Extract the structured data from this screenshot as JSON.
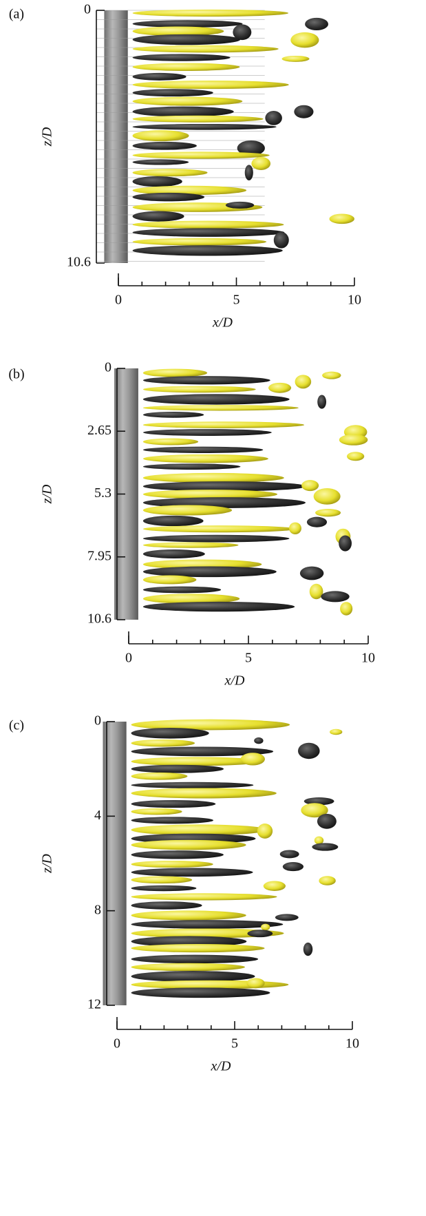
{
  "chart_data": [
    {
      "type": "isosurface",
      "panel": "(a)",
      "xlabel": "x/D",
      "ylabel": "z/D",
      "xlim": [
        0,
        10
      ],
      "xticks": [
        0,
        5,
        10
      ],
      "xminorticks": [
        1,
        2,
        3,
        4,
        6,
        7,
        8,
        9
      ],
      "ylim": [
        0,
        10.6
      ],
      "yticks": [
        0,
        10.6
      ],
      "y_inverted": true,
      "mesh_lines": true
    },
    {
      "type": "isosurface",
      "panel": "(b)",
      "xlabel": "x/D",
      "ylabel": "z/D",
      "xlim": [
        0,
        10
      ],
      "xticks": [
        0,
        5,
        10
      ],
      "xminorticks": [
        1,
        2,
        3,
        4,
        6,
        7,
        8,
        9
      ],
      "ylim": [
        0,
        10.6
      ],
      "yticks": [
        0,
        2.65,
        5.3,
        7.95,
        10.6
      ],
      "y_inverted": true,
      "mesh_lines": false
    },
    {
      "type": "isosurface",
      "panel": "(c)",
      "xlabel": "x/D",
      "ylabel": "z/D",
      "xlim": [
        0,
        10
      ],
      "xticks": [
        0,
        5,
        10
      ],
      "xminorticks": [
        1,
        2,
        3,
        4,
        6,
        7,
        8,
        9
      ],
      "ylim": [
        0,
        12
      ],
      "yticks": [
        0,
        4,
        8,
        12
      ],
      "y_inverted": true,
      "mesh_lines": false
    }
  ]
}
